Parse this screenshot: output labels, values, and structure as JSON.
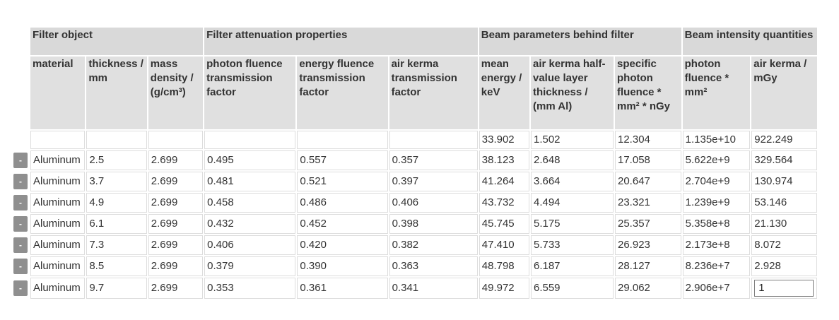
{
  "groups": [
    {
      "label": "Filter object",
      "span": 3
    },
    {
      "label": "Filter attenuation properties",
      "span": 3
    },
    {
      "label": "Beam parameters behind filter",
      "span": 3
    },
    {
      "label": "Beam intensity quantities",
      "span": 2
    }
  ],
  "columns": [
    "material",
    "thickness / mm",
    "mass density / (g/cm³)",
    "photon fluence transmission factor",
    "energy fluence transmission factor",
    "air kerma transmission factor",
    "mean energy / keV",
    "air kerma half- value layer thickness / (mm Al)",
    "specific photon fluence * mm² * nGy",
    "photon fluence * mm²",
    "air kerma / mGy"
  ],
  "reference_row": [
    "",
    "",
    "",
    "",
    "",
    "",
    "33.902",
    "1.502",
    "12.304",
    "1.135e+10",
    "922.249"
  ],
  "remove_button_label": "-",
  "rows": [
    [
      "Aluminum",
      "2.5",
      "2.699",
      "0.495",
      "0.557",
      "0.357",
      "38.123",
      "2.648",
      "17.058",
      "5.622e+9",
      "329.564"
    ],
    [
      "Aluminum",
      "3.7",
      "2.699",
      "0.481",
      "0.521",
      "0.397",
      "41.264",
      "3.664",
      "20.647",
      "2.704e+9",
      "130.974"
    ],
    [
      "Aluminum",
      "4.9",
      "2.699",
      "0.458",
      "0.486",
      "0.406",
      "43.732",
      "4.494",
      "23.321",
      "1.239e+9",
      "53.146"
    ],
    [
      "Aluminum",
      "6.1",
      "2.699",
      "0.432",
      "0.452",
      "0.398",
      "45.745",
      "5.175",
      "25.357",
      "5.358e+8",
      "21.130"
    ],
    [
      "Aluminum",
      "7.3",
      "2.699",
      "0.406",
      "0.420",
      "0.382",
      "47.410",
      "5.733",
      "26.923",
      "2.173e+8",
      "8.072"
    ],
    [
      "Aluminum",
      "8.5",
      "2.699",
      "0.379",
      "0.390",
      "0.363",
      "48.798",
      "6.187",
      "28.127",
      "8.236e+7",
      "2.928"
    ],
    [
      "Aluminum",
      "9.7",
      "2.699",
      "0.353",
      "0.361",
      "0.341",
      "49.972",
      "6.559",
      "29.062",
      "2.906e+7",
      "1"
    ]
  ],
  "colors": {
    "group_header_bg": "#d9d9d9",
    "column_header_bg": "#e0e0e0",
    "button_bg": "#8f8f8f",
    "cell_border": "#dddddd"
  }
}
